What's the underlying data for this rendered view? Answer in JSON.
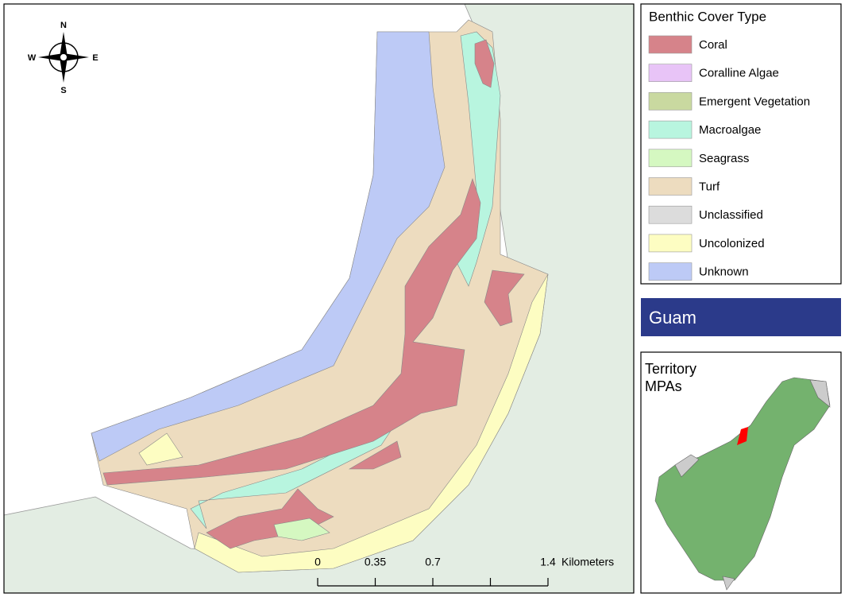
{
  "legend": {
    "title": "Benthic Cover Type",
    "items": [
      {
        "label": "Coral",
        "color": "#d6838a"
      },
      {
        "label": "Coralline Algae",
        "color": "#e8c4f7"
      },
      {
        "label": "Emergent Vegetation",
        "color": "#c9d9a0"
      },
      {
        "label": "Macroalgae",
        "color": "#b8f5df"
      },
      {
        "label": "Seagrass",
        "color": "#d5f8c1"
      },
      {
        "label": "Turf",
        "color": "#eddcbf"
      },
      {
        "label": "Unclassified",
        "color": "#dcdcdc"
      },
      {
        "label": "Uncolonized",
        "color": "#fdfdc2"
      },
      {
        "label": "Unknown",
        "color": "#bdcaf6"
      }
    ]
  },
  "banner": {
    "title": "Guam"
  },
  "inset": {
    "title_lines": [
      "Territory",
      "MPAs"
    ]
  },
  "compass": {
    "n": "N",
    "s": "S",
    "e": "E",
    "w": "W"
  },
  "scale_bar": {
    "ticks": [
      0,
      0.35,
      0.7,
      1.4
    ],
    "unit": "Kilometers"
  }
}
